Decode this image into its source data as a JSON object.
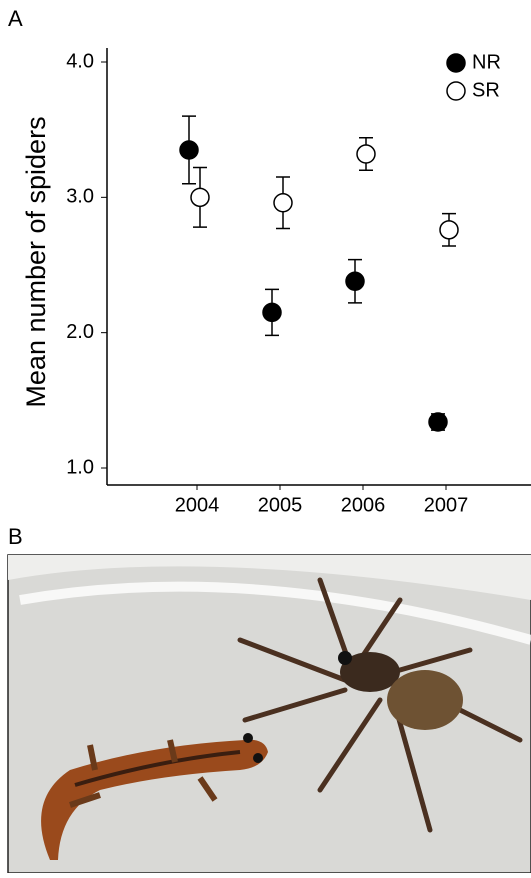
{
  "panel_labels": {
    "a": "A",
    "b": "B"
  },
  "chart_data": {
    "type": "scatter",
    "ylabel": "Mean number of spiders",
    "categories": [
      "2004",
      "2005",
      "2006",
      "2007"
    ],
    "series": [
      {
        "name": "NR",
        "color": "#000000",
        "values": [
          3.35,
          2.15,
          2.38,
          1.34
        ],
        "errors": [
          0.25,
          0.17,
          0.16,
          0.06
        ]
      },
      {
        "name": "SR",
        "color": "#ffffff",
        "values": [
          3.0,
          2.96,
          3.32,
          2.76
        ],
        "errors": [
          0.22,
          0.19,
          0.12,
          0.12
        ]
      }
    ],
    "ylim": [
      1.0,
      4.0
    ],
    "yticks": [
      {
        "value": 1,
        "label": "1.0"
      },
      {
        "value": 2,
        "label": "2.0"
      },
      {
        "value": 3,
        "label": "3.0"
      },
      {
        "value": 4,
        "label": "4.0"
      }
    ],
    "legend": "upper right"
  }
}
